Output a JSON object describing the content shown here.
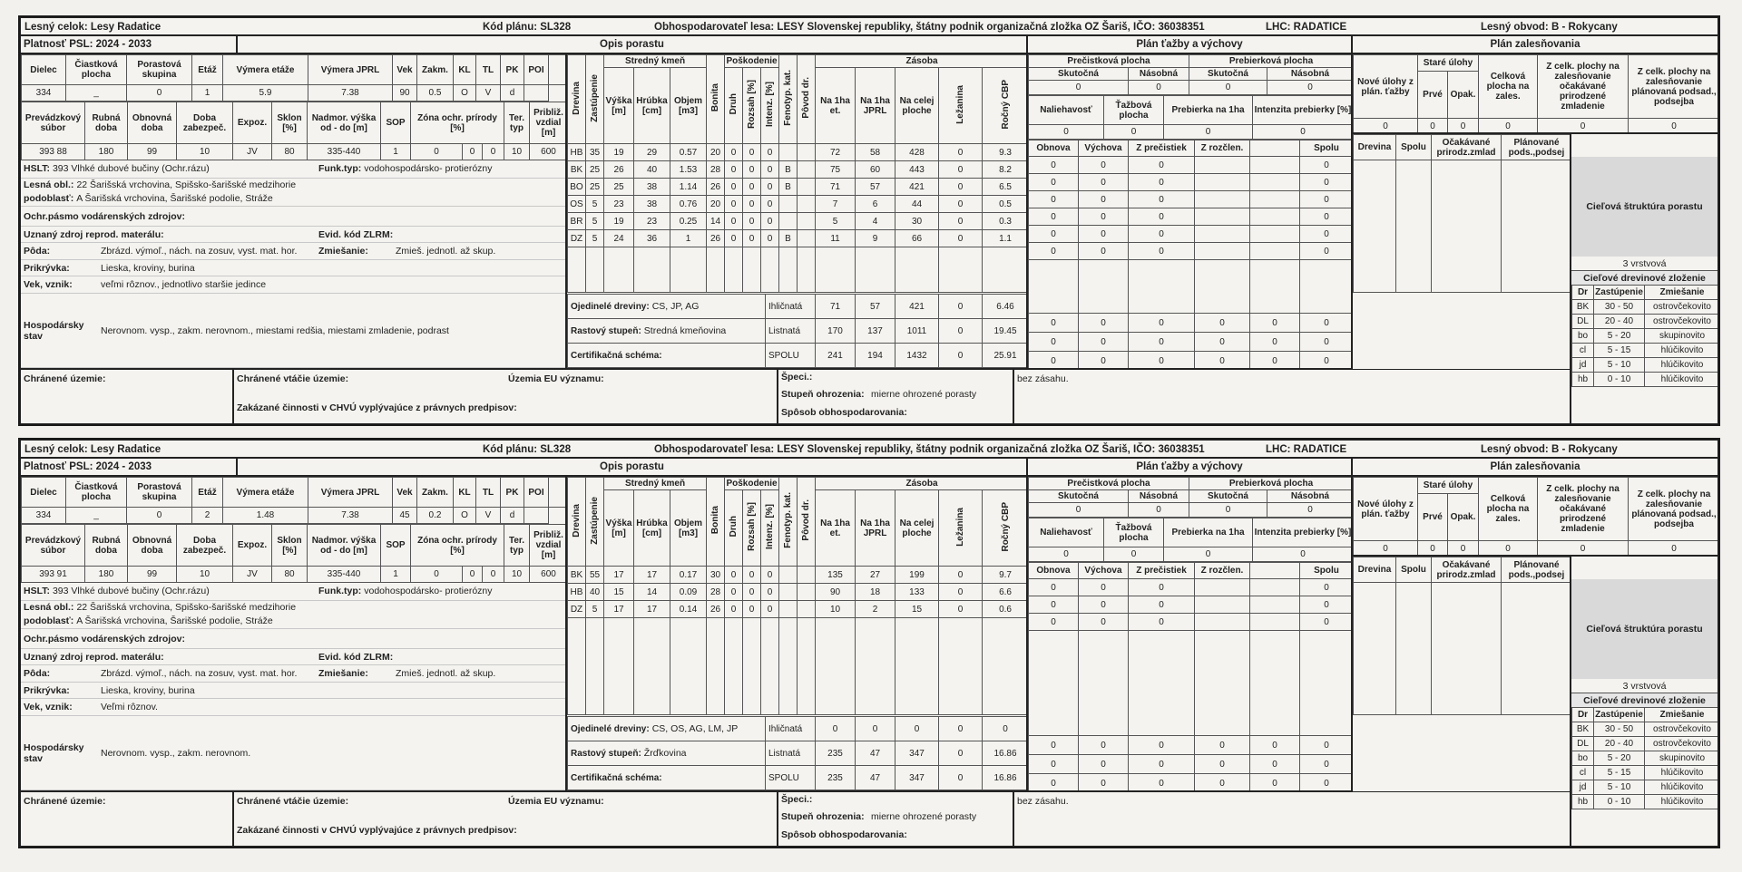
{
  "labels": {
    "header": {
      "lesny_celok": "Lesný celok: Lesy Radatice",
      "kod": "Kód plánu: SL328",
      "obhosp": "Obhospodarovateľ lesa: LESY Slovenskej republiky, štátny podnik organizačná zložka OZ Šariš, IČO: 36038351",
      "lhc": "LHC: RADATICE",
      "obvod": "Lesný obvod: B - Rokycany"
    },
    "platnost": "Platnosť PSL: 2024 - 2033",
    "opis": "Opis porastu",
    "plan_tazby": "Plán ťažby a výchovy",
    "plan_zales": "Plán zalesňovania",
    "site1": [
      "Dielec",
      "Čiastková plocha",
      "Porastová skupina",
      "Etáž",
      "Výmera etáže",
      "Výmera JPRL",
      "Vek",
      "Zakm.",
      "KL",
      "TL",
      "PK",
      "POI"
    ],
    "site2": [
      "Prevádzkový súbor",
      "Rubná doba",
      "Obnovná doba",
      "Doba zabezpeč.",
      "Expoz.",
      "Sklon [%]",
      "Nadmor. výška od - do [m]",
      "SOP",
      "Zóna ochr. prírody [%]",
      "Ter. typ",
      "Približ. vzdial [m]"
    ],
    "tree_groups": [
      "Stredný kmeň",
      "Poškodenie",
      "Zásoba"
    ],
    "tree_cols": [
      "Drevina",
      "Zastúpenie",
      "Výška [m]",
      "Hrúbka [cm]",
      "Objem [m3]",
      "Bonita",
      "Druh",
      "Rozsah [%]",
      "Intenz. [%]",
      "Fenotyp. kat.",
      "Pôvod dr.",
      "Na 1ha et.",
      "Na 1ha JPRL",
      "Na celej ploche",
      "Ležanina",
      "Ročný CBP"
    ],
    "summary_labels": [
      "Ojedinelé dreviny:",
      "Rastový stupeň:",
      "Certifikačná schéma:"
    ],
    "summary_kinds": [
      "Ihličnatá",
      "Listnatá",
      "SPOLU"
    ],
    "tazba_groups": [
      "Prečistková plocha",
      "Prebierková plocha"
    ],
    "tazba_sub": [
      "Skutočná",
      "Násobná",
      "Skutočná",
      "Násobná"
    ],
    "tazba_sub2": [
      "Naliehavosť",
      "Ťažbová plocha",
      "Prebierka na 1ha",
      "Intenzita prebierky [%]"
    ],
    "tazba_cols": [
      "Obnova",
      "Výchova",
      "Z prečistiek",
      "Z rozčlen.",
      null,
      "Spolu"
    ],
    "zales_cols": [
      "Nové úlohy z plán. ťažby",
      "Staré úlohy",
      "Prvé",
      "Opak.",
      "Celková plocha na zales.",
      "Z celk. plochy na zalesňovanie očakávané prirodzené zmladenie",
      "Z celk. plochy na zalesňovanie plánovaná podsad., podsejba"
    ],
    "zales_cols2": [
      "Drevina",
      "Spolu",
      "Očakávané prirodz.zmlad",
      "Plánované pods.,podsej"
    ],
    "ciel": "Cieľová štruktúra porastu",
    "ciel_zlozenie": "Cieľové drevinové zloženie",
    "ciel_cols": [
      "Dr",
      "Zastúpenie",
      "Zmiešanie"
    ],
    "bottom": {
      "chranene": "Chránené územie:",
      "vtacie": "Chránené vtáčie územie:",
      "eu": "Územia EU významu:",
      "zakazane": "Zakázané činnosti v CHVÚ vyplývajúce z právnych predpisov:",
      "speci": "Špeci.:",
      "stupen": "Stupeň ohrozenia:",
      "sposob": "Spôsob obhospodarovania:"
    }
  },
  "records": [
    {
      "site1": [
        334,
        "_",
        0,
        1,
        5.9,
        7.38,
        90,
        0.5,
        "O",
        "V",
        "d"
      ],
      "site2": [
        "393 88",
        180,
        99,
        10,
        "JV",
        80,
        "335-440",
        1,
        0,
        0,
        0,
        10,
        600
      ],
      "info": [
        [
          {
            "label": "HSLT:",
            "text": "393 Vlhké dubové bučiny (Ochr.rázu)"
          },
          {
            "label": "Funk.typ:",
            "text": "vodohospodársko- protierózny"
          }
        ],
        [
          {
            "label": "Lesná obl.:",
            "text": "22 Šarišská vrchovina, Spišsko-šarišské medzihorie"
          }
        ],
        [
          {
            "label": "podoblasť:",
            "text": "A Šarišská vrchovina, Šarišské podolie, Stráže"
          }
        ],
        [
          {
            "label": "Ochr.pásmo vodárenských zdrojov:"
          }
        ],
        [
          {
            "label": "Uznaný zdroj reprod. materálu:"
          },
          {
            "label": "Evid. kód ZLRM:"
          }
        ],
        [
          {
            "label": "Pôda:",
            "text": "Zbrázd. výmoľ., nách. na zosuv, vyst. mat. hor."
          },
          {
            "label": "Zmiešanie:",
            "text": "Zmieš. jednotl. až skup."
          }
        ],
        [
          {
            "label": "Prikrývka:",
            "text": "Lieska, kroviny, burina"
          }
        ],
        [
          {
            "label": "Vek, vznik:",
            "text": "veľmi rôznov., jednotlivo staršie jedince"
          }
        ],
        [
          {
            "label": "Hospodársky stav",
            "text": "Nerovnom. vysp., zakm. nerovnom., miestami redšia, miestami zmladenie, podrast"
          }
        ]
      ],
      "trees": [
        [
          "HB",
          35,
          19,
          29,
          0.57,
          20,
          0,
          0,
          0,
          null,
          null,
          72,
          58,
          428,
          0,
          9.3
        ],
        [
          "BK",
          25,
          26,
          40,
          1.53,
          28,
          0,
          0,
          0,
          "B",
          null,
          75,
          60,
          443,
          0,
          8.2
        ],
        [
          "BO",
          25,
          25,
          38,
          1.14,
          26,
          0,
          0,
          0,
          "B",
          null,
          71,
          57,
          421,
          0,
          6.5
        ],
        [
          "OS",
          5,
          23,
          38,
          0.76,
          20,
          0,
          0,
          0,
          null,
          null,
          7,
          6,
          44,
          0,
          0.5
        ],
        [
          "BR",
          5,
          19,
          23,
          0.25,
          14,
          0,
          0,
          0,
          null,
          null,
          5,
          4,
          30,
          0,
          0.3
        ],
        [
          "DZ",
          5,
          24,
          36,
          1,
          26,
          0,
          0,
          0,
          "B",
          null,
          11,
          9,
          66,
          0,
          1.1
        ]
      ],
      "summary": [
        {
          "text": "CS, JP, AG",
          "values": [
            71,
            57,
            421,
            0,
            6.46
          ]
        },
        {
          "text": "Stredná kmeňovina",
          "values": [
            170,
            137,
            1011,
            0,
            19.45
          ]
        },
        {
          "values": [
            241,
            194,
            1432,
            0,
            25.91
          ]
        }
      ],
      "tazba_top": [
        0,
        0,
        0,
        0
      ],
      "tazba_top2": [
        0,
        0,
        0,
        0
      ],
      "tazba_rows": [
        [
          0,
          0,
          0,
          null,
          null,
          0
        ],
        [
          0,
          0,
          0,
          null,
          null,
          0
        ],
        [
          0,
          0,
          0,
          null,
          null,
          0
        ],
        [
          0,
          0,
          0,
          null,
          null,
          0
        ],
        [
          0,
          0,
          0,
          null,
          null,
          0
        ],
        [
          0,
          0,
          0,
          null,
          null,
          0
        ]
      ],
      "tazba_bottom": [
        [
          0,
          0,
          0,
          0,
          0,
          0
        ],
        [
          0,
          0,
          0,
          0,
          0,
          0
        ],
        [
          0,
          0,
          0,
          0,
          0,
          0
        ]
      ],
      "zales": [
        0,
        0,
        0,
        0,
        0,
        0
      ],
      "ciel_value": "3 vrstvová",
      "ciel_rows": [
        [
          "BK",
          "30 - 50",
          "ostrovčekovito"
        ],
        [
          "DL",
          "20 - 40",
          "ostrovčekovito"
        ],
        [
          "bo",
          "5 - 20",
          "skupinovito"
        ],
        [
          "cl",
          "5 - 15",
          "hlúčikovito"
        ],
        [
          "jd",
          "5 - 10",
          "hlúčikovito"
        ],
        [
          "hb",
          "0 - 10",
          "hlúčikovito"
        ]
      ],
      "stupen": "mierne ohrozené porasty",
      "zasah": "bez zásahu."
    },
    {
      "site1": [
        334,
        "_",
        0,
        2,
        1.48,
        7.38,
        45,
        0.2,
        "O",
        "V",
        "d"
      ],
      "site2": [
        "393 91",
        180,
        99,
        10,
        "JV",
        80,
        "335-440",
        1,
        0,
        0,
        0,
        10,
        600
      ],
      "info": [
        [
          {
            "label": "HSLT:",
            "text": "393 Vlhké dubové bučiny (Ochr.rázu)"
          },
          {
            "label": "Funk.typ:",
            "text": "vodohospodársko- protierózny"
          }
        ],
        [
          {
            "label": "Lesná obl.:",
            "text": "22 Šarišská vrchovina, Spišsko-šarišské medzihorie"
          }
        ],
        [
          {
            "label": "podoblasť:",
            "text": "A Šarišská vrchovina, Šarišské podolie, Stráže"
          }
        ],
        [
          {
            "label": "Ochr.pásmo vodárenských zdrojov:"
          }
        ],
        [
          {
            "label": "Uznaný zdroj reprod. materálu:"
          },
          {
            "label": "Evid. kód ZLRM:"
          }
        ],
        [
          {
            "label": "Pôda:",
            "text": "Zbrázd. výmoľ., nách. na zosuv, vyst. mat. hor."
          },
          {
            "label": "Zmiešanie:",
            "text": "Zmieš. jednotl. až skup."
          }
        ],
        [
          {
            "label": "Prikrývka:",
            "text": "Lieska, kroviny, burina"
          }
        ],
        [
          {
            "label": "Vek, vznik:",
            "text": "Veľmi rôznov."
          }
        ],
        [
          {
            "label": "Hospodársky stav",
            "text": "Nerovnom. vysp., zakm. nerovnom."
          }
        ]
      ],
      "trees": [
        [
          "BK",
          55,
          17,
          17,
          0.17,
          30,
          0,
          0,
          0,
          null,
          null,
          135,
          27,
          199,
          0,
          9.7
        ],
        [
          "HB",
          40,
          15,
          14,
          0.09,
          28,
          0,
          0,
          0,
          null,
          null,
          90,
          18,
          133,
          0,
          6.6
        ],
        [
          "DZ",
          5,
          17,
          17,
          0.14,
          26,
          0,
          0,
          0,
          null,
          null,
          10,
          2,
          15,
          0,
          0.6
        ]
      ],
      "summary": [
        {
          "text": "CS, OS, AG, LM, JP",
          "values": [
            0,
            0,
            0,
            0,
            0
          ]
        },
        {
          "text": "Žrďkovina",
          "values": [
            235,
            47,
            347,
            0,
            16.86
          ]
        },
        {
          "values": [
            235,
            47,
            347,
            0,
            16.86
          ]
        }
      ],
      "tazba_top": [
        0,
        0,
        0,
        0
      ],
      "tazba_top2": [
        0,
        0,
        0,
        0
      ],
      "tazba_rows": [
        [
          0,
          0,
          0,
          null,
          null,
          0
        ],
        [
          0,
          0,
          0,
          null,
          null,
          0
        ],
        [
          0,
          0,
          0,
          null,
          null,
          0
        ]
      ],
      "tazba_bottom": [
        [
          0,
          0,
          0,
          0,
          0,
          0
        ],
        [
          0,
          0,
          0,
          0,
          0,
          0
        ],
        [
          0,
          0,
          0,
          0,
          0,
          0
        ]
      ],
      "zales": [
        0,
        0,
        0,
        0,
        0,
        0
      ],
      "ciel_value": "3 vrstvová",
      "ciel_rows": [
        [
          "BK",
          "30 - 50",
          "ostrovčekovito"
        ],
        [
          "DL",
          "20 - 40",
          "ostrovčekovito"
        ],
        [
          "bo",
          "5 - 20",
          "skupinovito"
        ],
        [
          "cl",
          "5 - 15",
          "hlúčikovito"
        ],
        [
          "jd",
          "5 - 10",
          "hlúčikovito"
        ],
        [
          "hb",
          "0 - 10",
          "hlúčikovito"
        ]
      ],
      "stupen": "mierne ohrozené porasty",
      "zasah": "bez zásahu."
    }
  ]
}
